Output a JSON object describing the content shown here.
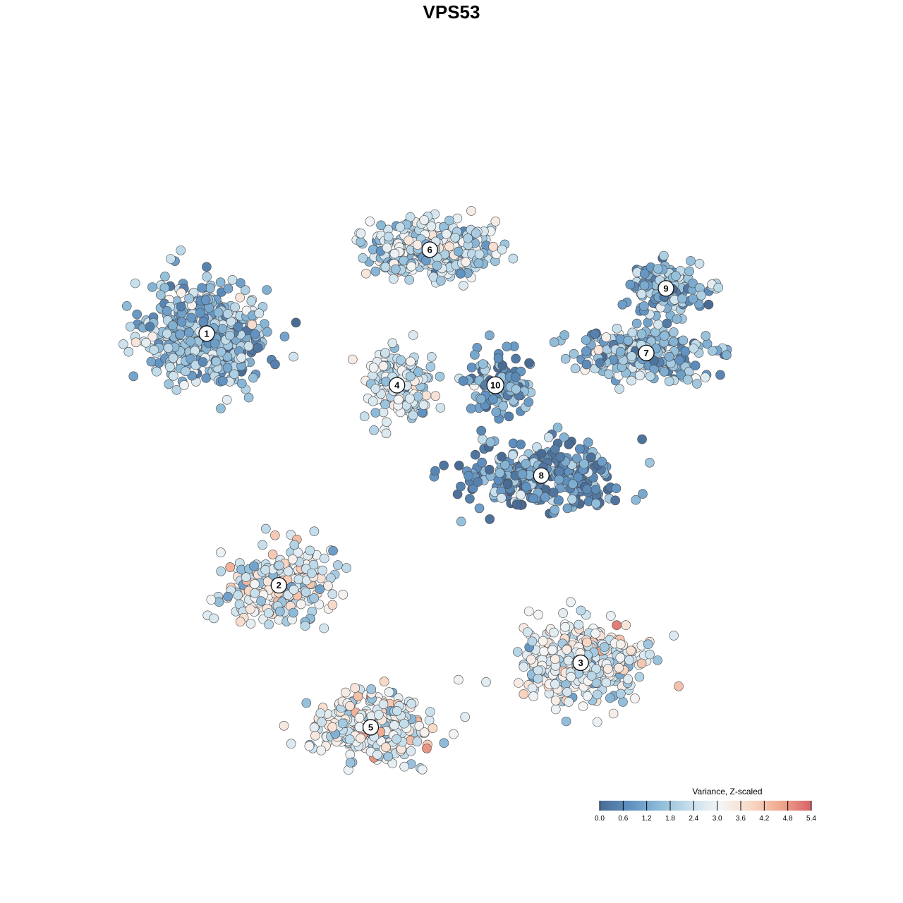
{
  "chart_data": {
    "type": "scatter",
    "title": "VPS53",
    "xlabel": "",
    "ylabel": "",
    "grid": false,
    "legend_placement": "bottom-right",
    "legend": {
      "title": "Variance, Z-scaled",
      "range": [
        0.0,
        5.4
      ],
      "ticks": [
        "0.0",
        "0.6",
        "1.2",
        "1.8",
        "2.4",
        "3.0",
        "3.6",
        "4.2",
        "4.8",
        "5.4"
      ],
      "colorscale": [
        "#4a6c94",
        "#5f91c1",
        "#8fbcd9",
        "#c7dfec",
        "#f5f5f5",
        "#f8d8c6",
        "#efa78c",
        "#d9616a"
      ]
    },
    "clusters": [
      {
        "label": "1",
        "x": 0.1,
        "y": 0.68,
        "value": 1.6,
        "spread": [
          0.09,
          0.08
        ]
      },
      {
        "label": "2",
        "x": 0.21,
        "y": 0.29,
        "value": 2.7,
        "spread": [
          0.08,
          0.06
        ]
      },
      {
        "label": "3",
        "x": 0.67,
        "y": 0.17,
        "value": 2.8,
        "spread": [
          0.09,
          0.06
        ]
      },
      {
        "label": "4",
        "x": 0.39,
        "y": 0.6,
        "value": 2.4,
        "spread": [
          0.05,
          0.06
        ]
      },
      {
        "label": "5",
        "x": 0.35,
        "y": 0.07,
        "value": 2.9,
        "spread": [
          0.08,
          0.05
        ]
      },
      {
        "label": "6",
        "x": 0.44,
        "y": 0.81,
        "value": 2.3,
        "spread": [
          0.1,
          0.04
        ]
      },
      {
        "label": "7",
        "x": 0.77,
        "y": 0.65,
        "value": 1.6,
        "spread": [
          0.1,
          0.04
        ]
      },
      {
        "label": "8",
        "x": 0.61,
        "y": 0.46,
        "value": 1.0,
        "spread": [
          0.12,
          0.05
        ]
      },
      {
        "label": "9",
        "x": 0.8,
        "y": 0.75,
        "value": 1.4,
        "spread": [
          0.06,
          0.04
        ]
      },
      {
        "label": "10",
        "x": 0.54,
        "y": 0.6,
        "value": 1.2,
        "spread": [
          0.05,
          0.05
        ]
      }
    ]
  }
}
